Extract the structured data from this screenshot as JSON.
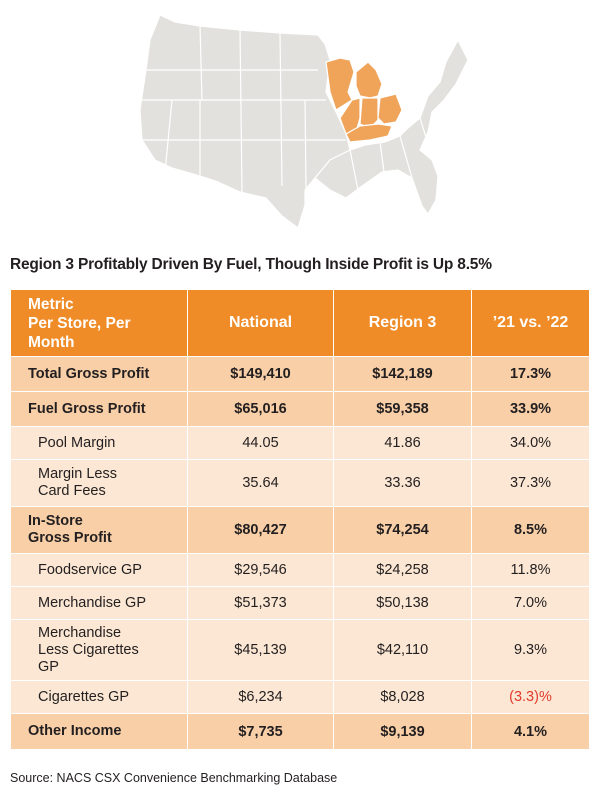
{
  "headline": "Region 3 Profitably Driven By Fuel, Though Inside Profit is Up 8.5%",
  "colors": {
    "header": "#ef8c28",
    "major_row": "#f8cfa7",
    "minor_row": "#fbe7d3",
    "negative": "#e23b2e",
    "map_land": "#e3e1de",
    "map_region": "#f0a45a"
  },
  "source": "Source: NACS CSX Convenience Benchmarking Database",
  "chart_data": {
    "type": "table",
    "columns": [
      "Metric\nPer Store, Per\nMonth",
      "National",
      "Region 3",
      "’21 vs. ’22"
    ],
    "rows": [
      {
        "metric": "Total Gross Profit",
        "national": "$149,410",
        "region3": "$142,189",
        "change": "17.3%",
        "level": "major"
      },
      {
        "metric": "Fuel Gross Profit",
        "national": "$65,016",
        "region3": "$59,358",
        "change": "33.9%",
        "level": "major"
      },
      {
        "metric": "Pool Margin",
        "national": "44.05",
        "region3": "41.86",
        "change": "34.0%",
        "level": "minor"
      },
      {
        "metric": "Margin Less\nCard Fees",
        "national": "35.64",
        "region3": "33.36",
        "change": "37.3%",
        "level": "minor"
      },
      {
        "metric": "In-Store\nGross Profit",
        "national": "$80,427",
        "region3": "$74,254",
        "change": "8.5%",
        "level": "major"
      },
      {
        "metric": "Foodservice GP",
        "national": "$29,546",
        "region3": "$24,258",
        "change": "11.8%",
        "level": "minor"
      },
      {
        "metric": "Merchandise GP",
        "national": "$51,373",
        "region3": "$50,138",
        "change": "7.0%",
        "level": "minor"
      },
      {
        "metric": "Merchandise\nLess Cigarettes\nGP",
        "national": "$45,139",
        "region3": "$42,110",
        "change": "9.3%",
        "level": "minor"
      },
      {
        "metric": "Cigarettes GP",
        "national": "$6,234",
        "region3": "$8,028",
        "change": "(3.3)%",
        "level": "minor",
        "negative": true
      },
      {
        "metric": "Other Income",
        "national": "$7,735",
        "region3": "$9,139",
        "change": "4.1%",
        "level": "major"
      }
    ]
  }
}
